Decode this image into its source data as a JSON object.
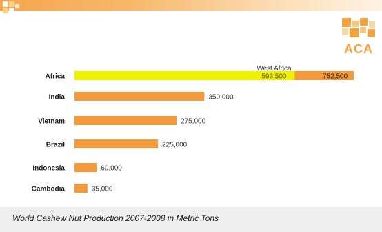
{
  "logo": {
    "text": "ACA"
  },
  "caption": "World Cashew Nut Production 2007-2008 in Metric Tons",
  "colors": {
    "bar": "#f39a3c",
    "highlight": "#eef000",
    "topbar": "#f6a64e"
  },
  "chart_data": {
    "type": "bar",
    "orientation": "horizontal",
    "categories": [
      "Africa",
      "India",
      "Vietnam",
      "Brazil",
      "Indonesia",
      "Cambodia"
    ],
    "values": [
      752500,
      350000,
      275000,
      225000,
      60000,
      35000
    ],
    "data_labels": [
      "752,500",
      "350,000",
      "275,000",
      "225,000",
      "60,000",
      "35,000"
    ],
    "annotation": {
      "category": "Africa",
      "label": "West Africa",
      "value": 593500,
      "value_label": "593,500"
    },
    "title": "",
    "xlabel": "",
    "ylabel": ""
  }
}
